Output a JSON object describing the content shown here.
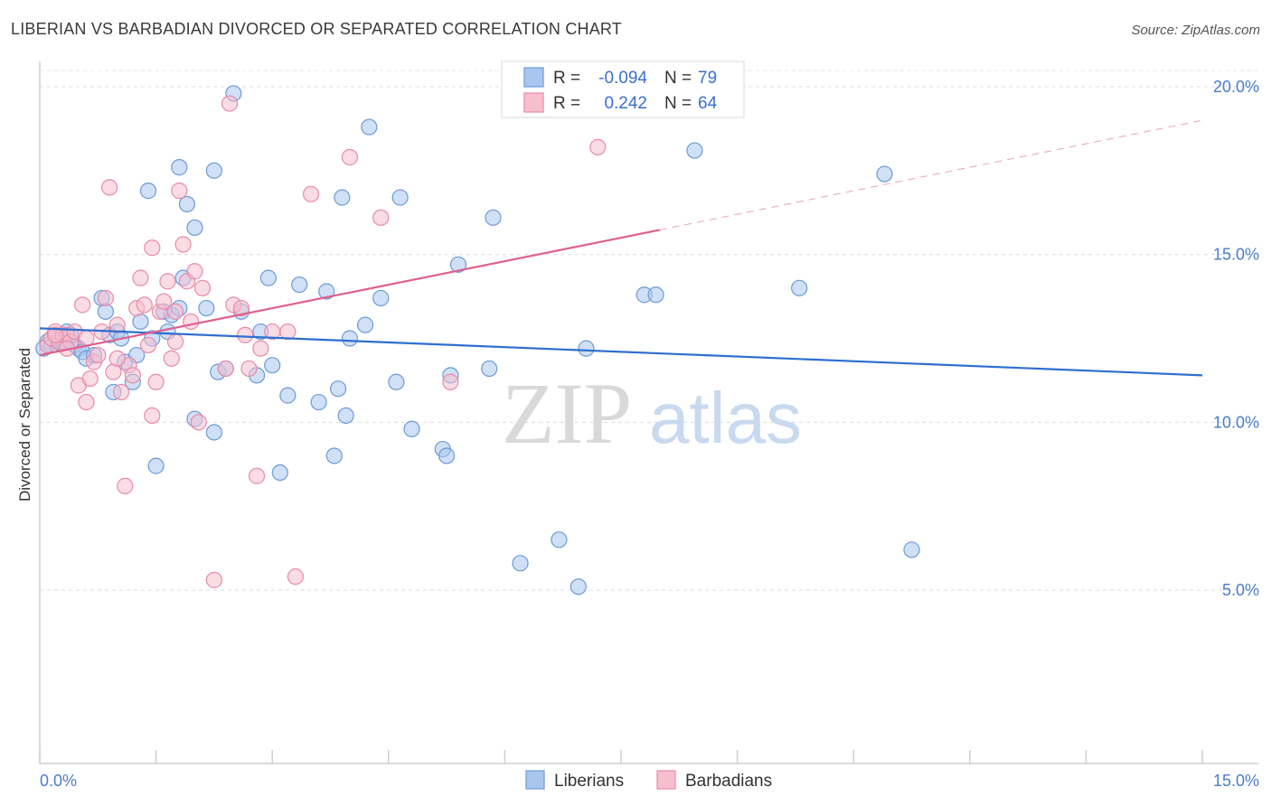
{
  "header": {
    "title": "LIBERIAN VS BARBADIAN DIVORCED OR SEPARATED CORRELATION CHART",
    "source": "Source: ZipAtlas.com"
  },
  "watermark": {
    "zip": "ZIP",
    "atlas": "atlas"
  },
  "legend_box": {
    "rows": [
      {
        "r_label": "R =",
        "r_value": "-0.094",
        "n_label": "N =",
        "n_value": "79"
      },
      {
        "r_label": "R =",
        "r_value": "0.242",
        "n_label": "N =",
        "n_value": "64"
      }
    ]
  },
  "bottom_legend": {
    "items": [
      {
        "label": "Liberians"
      },
      {
        "label": "Barbadians"
      }
    ]
  },
  "colors": {
    "liberian_fill": "#a9c6ee",
    "liberian_stroke": "#6d9ad8",
    "liberian_line": "#2e6fcf",
    "barbadian_fill": "#f6bfd0",
    "barbadian_stroke": "#e98aa8",
    "barbadian_line": "#e0608e"
  },
  "chart_data": {
    "type": "scatter",
    "title": "LIBERIAN VS BARBADIAN DIVORCED OR SEPARATED CORRELATION CHART",
    "xlabel": "",
    "ylabel": "Divorced or Separated",
    "xlim": [
      0,
      15
    ],
    "ylim": [
      0,
      21
    ],
    "x_ticks": [
      {
        "value": 0,
        "label": "0.0%"
      },
      {
        "value": 15,
        "label": "15.0%"
      }
    ],
    "y_ticks": [
      {
        "value": 5,
        "label": "5.0%"
      },
      {
        "value": 10,
        "label": "10.0%"
      },
      {
        "value": 15,
        "label": "15.0%"
      },
      {
        "value": 20,
        "label": "20.0%"
      }
    ],
    "grid": true,
    "legend_position": "top-center",
    "series": [
      {
        "name": "Liberians",
        "r": -0.094,
        "n": 79,
        "trend": {
          "x": [
            0,
            15
          ],
          "y": [
            12.8,
            11.4
          ],
          "dashed_from": null
        },
        "points": [
          [
            0.1,
            12.4
          ],
          [
            0.15,
            12.3
          ],
          [
            0.2,
            12.6
          ],
          [
            0.25,
            12.4
          ],
          [
            0.3,
            12.5
          ],
          [
            0.35,
            12.7
          ],
          [
            0.4,
            12.6
          ],
          [
            0.45,
            12.3
          ],
          [
            0.5,
            12.2
          ],
          [
            0.55,
            12.1
          ],
          [
            0.6,
            11.9
          ],
          [
            0.7,
            12.0
          ],
          [
            0.8,
            13.7
          ],
          [
            0.85,
            13.3
          ],
          [
            0.9,
            12.6
          ],
          [
            0.95,
            10.9
          ],
          [
            1.0,
            12.7
          ],
          [
            1.05,
            12.5
          ],
          [
            1.1,
            11.8
          ],
          [
            1.2,
            11.2
          ],
          [
            1.25,
            12.0
          ],
          [
            1.3,
            13.0
          ],
          [
            1.4,
            16.9
          ],
          [
            1.45,
            12.5
          ],
          [
            1.5,
            8.7
          ],
          [
            1.6,
            13.3
          ],
          [
            1.65,
            12.7
          ],
          [
            1.7,
            13.2
          ],
          [
            1.8,
            13.4
          ],
          [
            1.8,
            17.6
          ],
          [
            1.85,
            14.3
          ],
          [
            1.9,
            16.5
          ],
          [
            2.0,
            15.8
          ],
          [
            2.0,
            10.1
          ],
          [
            2.15,
            13.4
          ],
          [
            2.25,
            17.5
          ],
          [
            2.25,
            9.7
          ],
          [
            2.3,
            11.5
          ],
          [
            2.4,
            11.6
          ],
          [
            2.5,
            19.8
          ],
          [
            2.6,
            13.3
          ],
          [
            2.8,
            11.4
          ],
          [
            2.85,
            12.7
          ],
          [
            2.95,
            14.3
          ],
          [
            3.0,
            11.7
          ],
          [
            3.1,
            8.5
          ],
          [
            3.2,
            10.8
          ],
          [
            3.35,
            14.1
          ],
          [
            3.6,
            10.6
          ],
          [
            3.7,
            13.9
          ],
          [
            3.8,
            9.0
          ],
          [
            3.85,
            11.0
          ],
          [
            3.9,
            16.7
          ],
          [
            3.95,
            10.2
          ],
          [
            4.0,
            12.5
          ],
          [
            4.2,
            12.9
          ],
          [
            4.25,
            18.8
          ],
          [
            4.4,
            13.7
          ],
          [
            4.6,
            11.2
          ],
          [
            4.65,
            16.7
          ],
          [
            4.8,
            9.8
          ],
          [
            5.2,
            9.2
          ],
          [
            5.25,
            9.0
          ],
          [
            5.3,
            11.4
          ],
          [
            5.4,
            14.7
          ],
          [
            5.8,
            11.6
          ],
          [
            5.85,
            16.1
          ],
          [
            6.2,
            5.8
          ],
          [
            6.7,
            6.5
          ],
          [
            6.95,
            5.1
          ],
          [
            7.05,
            12.2
          ],
          [
            7.8,
            13.8
          ],
          [
            7.95,
            13.8
          ],
          [
            8.45,
            18.1
          ],
          [
            9.8,
            14.0
          ],
          [
            10.9,
            17.4
          ],
          [
            11.25,
            6.2
          ],
          [
            0.05,
            12.2
          ],
          [
            0.3,
            12.4
          ]
        ]
      },
      {
        "name": "Barbadians",
        "r": 0.242,
        "n": 64,
        "trend": {
          "x": [
            0,
            15
          ],
          "y": [
            12.0,
            19.0
          ],
          "dashed_from": 8.0
        },
        "points": [
          [
            0.1,
            12.3
          ],
          [
            0.15,
            12.5
          ],
          [
            0.2,
            12.7
          ],
          [
            0.25,
            12.4
          ],
          [
            0.3,
            12.6
          ],
          [
            0.35,
            12.6
          ],
          [
            0.4,
            12.4
          ],
          [
            0.45,
            12.7
          ],
          [
            0.5,
            11.1
          ],
          [
            0.55,
            13.5
          ],
          [
            0.6,
            10.6
          ],
          [
            0.65,
            11.3
          ],
          [
            0.7,
            11.8
          ],
          [
            0.75,
            12.0
          ],
          [
            0.8,
            12.7
          ],
          [
            0.85,
            13.7
          ],
          [
            0.9,
            17.0
          ],
          [
            0.95,
            11.5
          ],
          [
            1.0,
            12.9
          ],
          [
            1.05,
            10.9
          ],
          [
            1.1,
            8.1
          ],
          [
            1.15,
            11.7
          ],
          [
            1.2,
            11.4
          ],
          [
            1.25,
            13.4
          ],
          [
            1.3,
            14.3
          ],
          [
            1.35,
            13.5
          ],
          [
            1.4,
            12.3
          ],
          [
            1.45,
            15.2
          ],
          [
            1.45,
            10.2
          ],
          [
            1.5,
            11.2
          ],
          [
            1.55,
            13.3
          ],
          [
            1.6,
            13.6
          ],
          [
            1.65,
            14.2
          ],
          [
            1.7,
            11.9
          ],
          [
            1.75,
            12.4
          ],
          [
            1.8,
            16.9
          ],
          [
            1.85,
            15.3
          ],
          [
            1.9,
            14.2
          ],
          [
            1.95,
            13.0
          ],
          [
            2.0,
            14.5
          ],
          [
            2.05,
            10.0
          ],
          [
            2.1,
            14.0
          ],
          [
            2.25,
            5.3
          ],
          [
            2.4,
            11.6
          ],
          [
            2.45,
            19.5
          ],
          [
            2.5,
            13.5
          ],
          [
            2.6,
            13.4
          ],
          [
            2.65,
            12.6
          ],
          [
            2.7,
            11.6
          ],
          [
            2.8,
            8.4
          ],
          [
            2.85,
            12.2
          ],
          [
            3.0,
            12.7
          ],
          [
            3.2,
            12.7
          ],
          [
            3.3,
            5.4
          ],
          [
            3.5,
            16.8
          ],
          [
            4.0,
            17.9
          ],
          [
            4.4,
            16.1
          ],
          [
            5.3,
            11.2
          ],
          [
            7.2,
            18.2
          ],
          [
            0.2,
            12.6
          ],
          [
            0.35,
            12.2
          ],
          [
            0.6,
            12.5
          ],
          [
            1.0,
            11.9
          ],
          [
            1.75,
            13.3
          ]
        ]
      }
    ]
  }
}
